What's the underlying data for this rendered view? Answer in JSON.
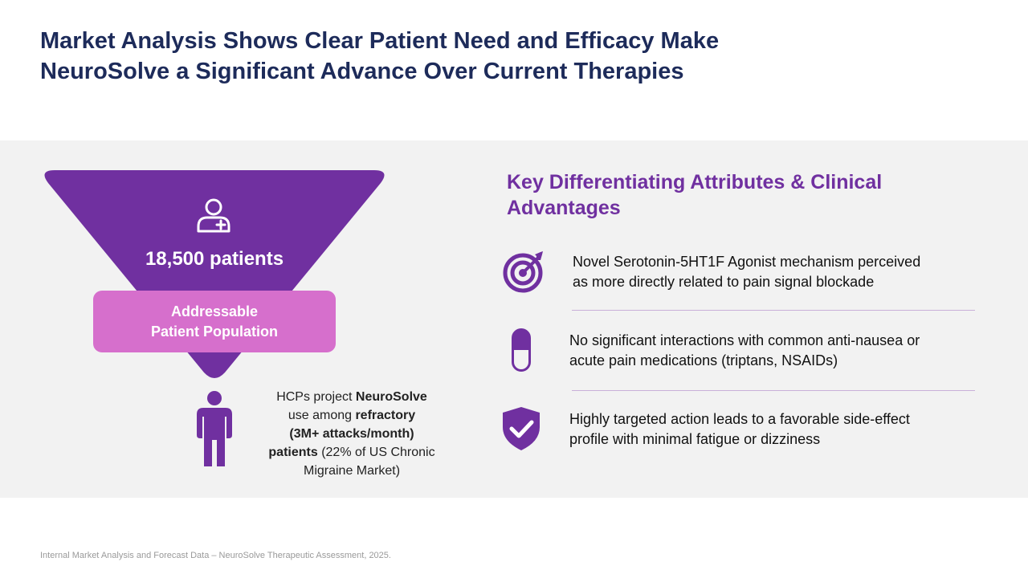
{
  "title": {
    "line1": "Market Analysis Shows Clear Patient Need and Efficacy Make",
    "line2": "NeuroSolve a Significant Advance Over Current Therapies"
  },
  "funnel": {
    "icon": "person-plus-icon",
    "count": "18,500 patients",
    "label_line1": "Addressable",
    "label_line2": "Patient Population"
  },
  "projection": {
    "icon": "person-icon",
    "t1": "HCPs project ",
    "t2": "NeuroSolve",
    "t3": "use among ",
    "t4": "refractory",
    "t5": "(3M+ attacks/month)",
    "t6": "patients",
    "t7": " (22% of US Chronic",
    "t8": "Migraine Market)"
  },
  "attributes": {
    "heading_line1": "Key Differentiating Attributes & Clinical",
    "heading_line2": "Advantages",
    "items": [
      {
        "icon": "target-icon",
        "line1": "Novel Serotonin-5HT1F Agonist mechanism perceived",
        "line2": "as more directly related to pain signal blockade"
      },
      {
        "icon": "capsule-icon",
        "line1": "No significant interactions with common anti-nausea or",
        "line2": "acute pain medications (triptans, NSAIDs)"
      },
      {
        "icon": "shield-check-icon",
        "line1": "Highly targeted action leads to a favorable side-effect",
        "line2": "profile with minimal fatigue or dizziness"
      }
    ]
  },
  "footnote": "Internal Market Analysis and Forecast Data – NeuroSolve Therapeutic Assessment, 2025.",
  "colors": {
    "title": "#1d2b5a",
    "purple": "#7030a0",
    "funnel": "#7030a0",
    "pink_box": "#d66fcc",
    "band": "#f2f2f2"
  }
}
